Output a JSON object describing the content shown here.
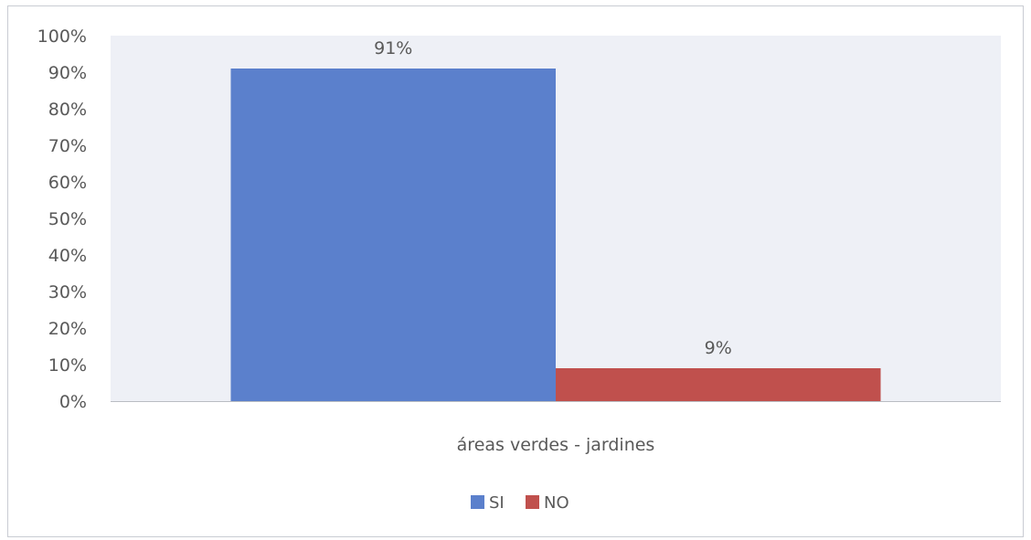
{
  "chart_data": {
    "type": "bar",
    "title": "",
    "categories": [
      "áreas verdes - jardines"
    ],
    "series": [
      {
        "name": "SI",
        "values": [
          0.91
        ],
        "data_labels": [
          "91%"
        ],
        "color": "#5b80cc"
      },
      {
        "name": "NO",
        "values": [
          0.09
        ],
        "data_labels": [
          "9%"
        ],
        "color": "#c0504d"
      }
    ],
    "yticks": [
      "0%",
      "10%",
      "20%",
      "30%",
      "40%",
      "50%",
      "60%",
      "70%",
      "80%",
      "90%",
      "100%"
    ],
    "ylim": [
      0,
      1
    ],
    "xlabel": "",
    "ylabel": "",
    "grid": false,
    "legend": "bottom",
    "plot_background": "#eef0f6",
    "axis_color": "#b9bcc2"
  }
}
